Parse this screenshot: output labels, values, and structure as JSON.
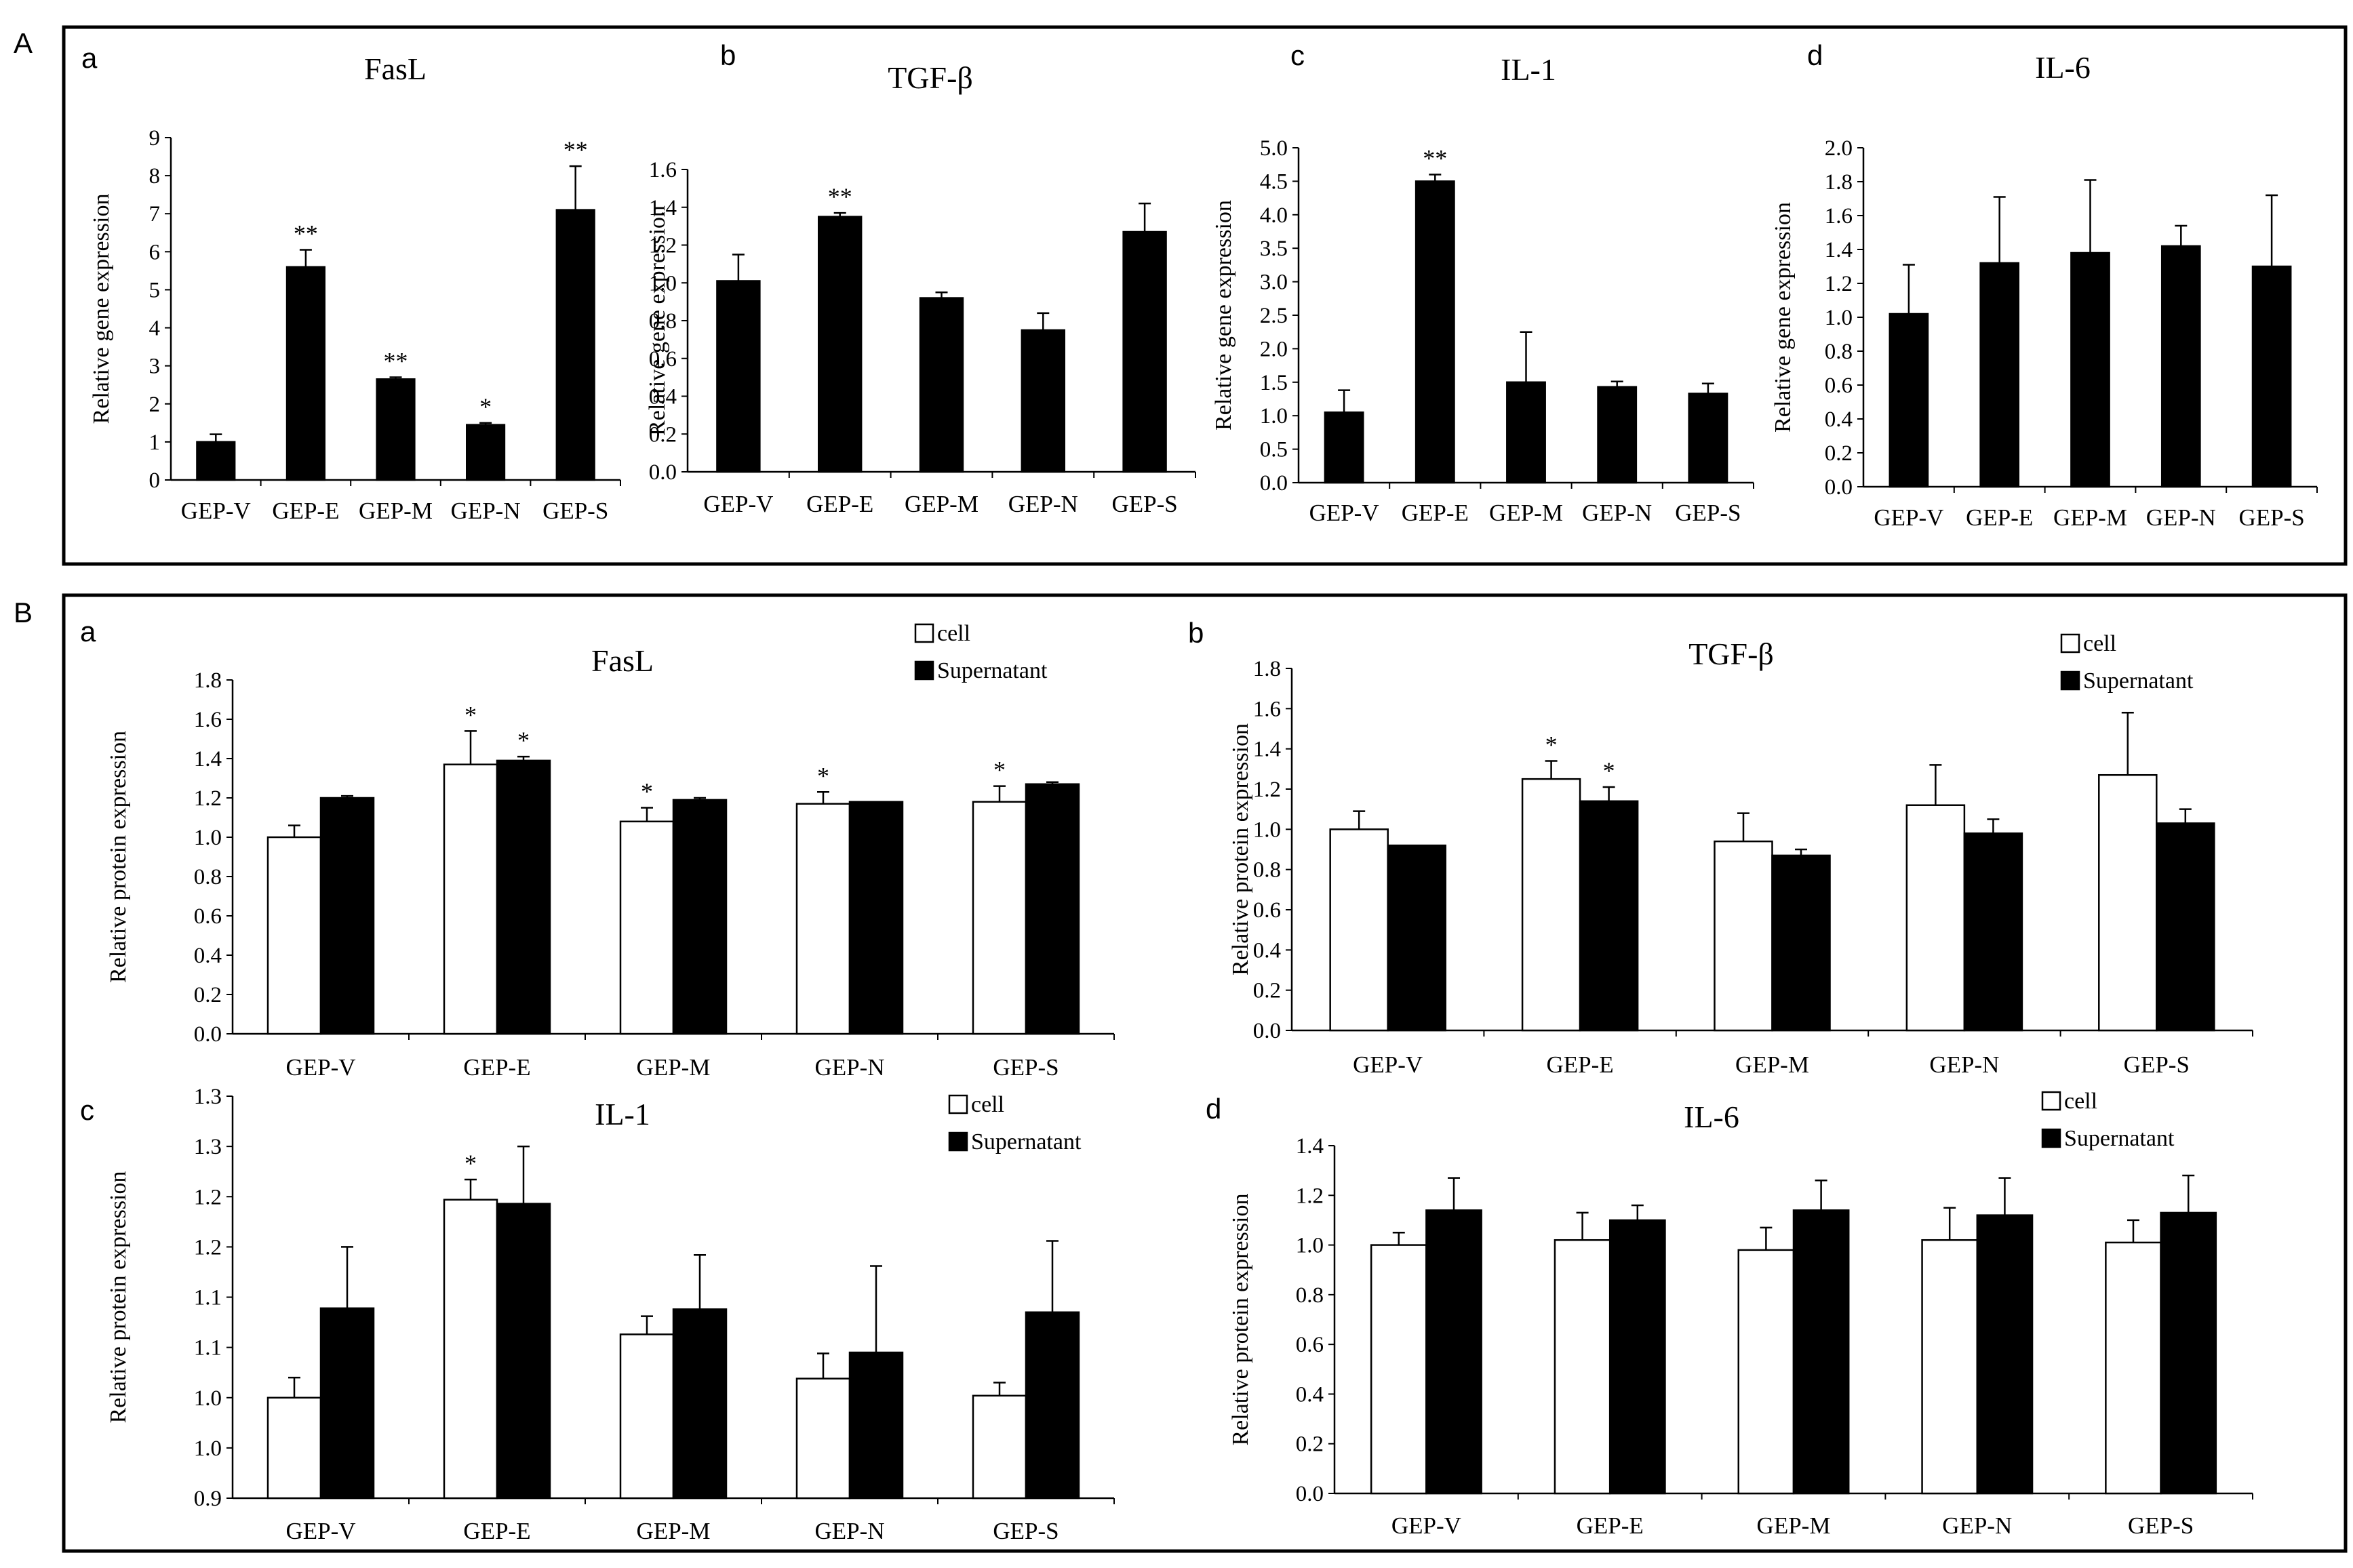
{
  "panels": [
    {
      "letter": "A"
    },
    {
      "letter": "B"
    }
  ],
  "chart_data": [
    {
      "panel": "A",
      "sublabel": "a",
      "type": "bar",
      "title": "FasL",
      "ylabel": "Relative gene expression",
      "xlabel": "",
      "ylim": [
        0,
        9
      ],
      "yticks": [
        0,
        1,
        2,
        3,
        4,
        5,
        6,
        7,
        8,
        9
      ],
      "tick_decimals": 0,
      "categories": [
        "GEP-V",
        "GEP-E",
        "GEP-M",
        "GEP-N",
        "GEP-S"
      ],
      "series": [
        {
          "color": "#000000",
          "values": [
            1.0,
            5.6,
            2.65,
            1.45,
            7.1
          ],
          "errors": [
            0.2,
            0.45,
            0.05,
            0.05,
            1.15
          ],
          "annotations": [
            "",
            "**",
            "**",
            "*",
            "**"
          ]
        }
      ]
    },
    {
      "panel": "A",
      "sublabel": "b",
      "type": "bar",
      "title": "TGF-β",
      "ylabel": "Relative gene expression",
      "xlabel": "",
      "ylim": [
        0,
        1.6
      ],
      "yticks": [
        0.0,
        0.2,
        0.4,
        0.6,
        0.8,
        1.0,
        1.2,
        1.4,
        1.6
      ],
      "tick_decimals": 1,
      "categories": [
        "GEP-V",
        "GEP-E",
        "GEP-M",
        "GEP-N",
        "GEP-S"
      ],
      "series": [
        {
          "color": "#000000",
          "values": [
            1.01,
            1.35,
            0.92,
            0.75,
            1.27
          ],
          "errors": [
            0.14,
            0.02,
            0.03,
            0.09,
            0.15
          ],
          "annotations": [
            "",
            "**",
            "",
            "",
            ""
          ]
        }
      ]
    },
    {
      "panel": "A",
      "sublabel": "c",
      "type": "bar",
      "title": "IL-1",
      "ylabel": "Relative gene expression",
      "xlabel": "",
      "ylim": [
        0,
        5
      ],
      "yticks": [
        0.0,
        0.5,
        1.0,
        1.5,
        2.0,
        2.5,
        3.0,
        3.5,
        4.0,
        4.5,
        5.0
      ],
      "tick_decimals": 1,
      "categories": [
        "GEP-V",
        "GEP-E",
        "GEP-M",
        "GEP-N",
        "GEP-S"
      ],
      "series": [
        {
          "color": "#000000",
          "values": [
            1.05,
            4.5,
            1.5,
            1.43,
            1.33
          ],
          "errors": [
            0.33,
            0.1,
            0.75,
            0.08,
            0.15
          ],
          "annotations": [
            "",
            "**",
            "",
            "",
            ""
          ]
        }
      ]
    },
    {
      "panel": "A",
      "sublabel": "d",
      "type": "bar",
      "title": "IL-6",
      "ylabel": "Relative gene expression",
      "xlabel": "",
      "ylim": [
        0,
        2
      ],
      "yticks": [
        0.0,
        0.2,
        0.4,
        0.6,
        0.8,
        1.0,
        1.2,
        1.4,
        1.6,
        1.8,
        2.0
      ],
      "tick_decimals": 1,
      "categories": [
        "GEP-V",
        "GEP-E",
        "GEP-M",
        "GEP-N",
        "GEP-S"
      ],
      "series": [
        {
          "color": "#000000",
          "values": [
            1.02,
            1.32,
            1.38,
            1.42,
            1.3
          ],
          "errors": [
            0.29,
            0.39,
            0.43,
            0.12,
            0.42
          ],
          "annotations": [
            "",
            "",
            "",
            "",
            ""
          ]
        }
      ]
    },
    {
      "panel": "B",
      "sublabel": "a",
      "type": "bar",
      "title": "FasL",
      "ylabel": "Relative protein expression",
      "xlabel": "",
      "ylim": [
        0,
        1.8
      ],
      "yticks": [
        0.0,
        0.2,
        0.4,
        0.6,
        0.8,
        1.0,
        1.2,
        1.4,
        1.6,
        1.8
      ],
      "tick_decimals": 1,
      "categories": [
        "GEP-V",
        "GEP-E",
        "GEP-M",
        "GEP-N",
        "GEP-S"
      ],
      "legend": [
        "cell",
        "Supernatant"
      ],
      "series": [
        {
          "name": "cell",
          "color": "#ffffff",
          "values": [
            1.0,
            1.37,
            1.08,
            1.17,
            1.18
          ],
          "errors": [
            0.06,
            0.17,
            0.07,
            0.06,
            0.08
          ],
          "annotations": [
            "",
            "*",
            "*",
            "*",
            "*"
          ]
        },
        {
          "name": "Supernatant",
          "color": "#000000",
          "values": [
            1.2,
            1.39,
            1.19,
            1.18,
            1.27
          ],
          "errors": [
            0.01,
            0.02,
            0.01,
            0.0,
            0.01
          ],
          "annotations": [
            "",
            "*",
            "",
            "",
            ""
          ]
        }
      ]
    },
    {
      "panel": "B",
      "sublabel": "b",
      "type": "bar",
      "title": "TGF-β",
      "ylabel": "Relative protein expression",
      "xlabel": "",
      "ylim": [
        0,
        1.8
      ],
      "yticks": [
        0.0,
        0.2,
        0.4,
        0.6,
        0.8,
        1.0,
        1.2,
        1.4,
        1.6,
        1.8
      ],
      "tick_decimals": 1,
      "categories": [
        "GEP-V",
        "GEP-E",
        "GEP-M",
        "GEP-N",
        "GEP-S"
      ],
      "legend": [
        "cell",
        "Supernatant"
      ],
      "series": [
        {
          "name": "cell",
          "color": "#ffffff",
          "values": [
            1.0,
            1.25,
            0.94,
            1.12,
            1.27
          ],
          "errors": [
            0.09,
            0.09,
            0.14,
            0.2,
            0.31
          ],
          "annotations": [
            "",
            "*",
            "",
            "",
            ""
          ]
        },
        {
          "name": "Supernatant",
          "color": "#000000",
          "values": [
            0.92,
            1.14,
            0.87,
            0.98,
            1.03
          ],
          "errors": [
            0.0,
            0.07,
            0.03,
            0.07,
            0.07
          ],
          "annotations": [
            "",
            "*",
            "",
            "",
            ""
          ]
        }
      ]
    },
    {
      "panel": "B",
      "sublabel": "c",
      "type": "bar",
      "title": "IL-1",
      "ylabel": "Relative protein expression",
      "xlabel": "",
      "ylim": [
        0.9,
        1.3
      ],
      "yticks": [
        0.9,
        0.95,
        1.0,
        1.05,
        1.1,
        1.15,
        1.2,
        1.25,
        1.3
      ],
      "ytick_labels": [
        "0.9",
        "1.0",
        "1.0",
        "1.1",
        "1.1",
        "1.2",
        "1.2",
        "1.3",
        "1.3"
      ],
      "categories": [
        "GEP-V",
        "GEP-E",
        "GEP-M",
        "GEP-N",
        "GEP-S"
      ],
      "legend": [
        "cell",
        "Supernatant"
      ],
      "series": [
        {
          "name": "cell",
          "color": "#ffffff",
          "values": [
            1.0,
            1.197,
            1.063,
            1.019,
            1.002
          ],
          "errors": [
            0.02,
            0.02,
            0.018,
            0.025,
            0.013
          ],
          "annotations": [
            "",
            "*",
            "",
            "",
            ""
          ]
        },
        {
          "name": "Supernatant",
          "color": "#000000",
          "values": [
            1.089,
            1.193,
            1.088,
            1.045,
            1.085
          ],
          "errors": [
            0.061,
            0.057,
            0.054,
            0.086,
            0.071
          ],
          "annotations": [
            "",
            "",
            "",
            "",
            ""
          ]
        }
      ]
    },
    {
      "panel": "B",
      "sublabel": "d",
      "type": "bar",
      "title": "IL-6",
      "ylabel": "Relative protein expression",
      "xlabel": "",
      "ylim": [
        0,
        1.4
      ],
      "yticks": [
        0.0,
        0.2,
        0.4,
        0.6,
        0.8,
        1.0,
        1.2,
        1.4
      ],
      "tick_decimals": 1,
      "categories": [
        "GEP-V",
        "GEP-E",
        "GEP-M",
        "GEP-N",
        "GEP-S"
      ],
      "legend": [
        "cell",
        "Supernatant"
      ],
      "series": [
        {
          "name": "cell",
          "color": "#ffffff",
          "values": [
            1.0,
            1.02,
            0.98,
            1.02,
            1.01
          ],
          "errors": [
            0.05,
            0.11,
            0.09,
            0.13,
            0.09
          ],
          "annotations": [
            "",
            "",
            "",
            "",
            ""
          ]
        },
        {
          "name": "Supernatant",
          "color": "#000000",
          "values": [
            1.14,
            1.1,
            1.14,
            1.12,
            1.13
          ],
          "errors": [
            0.13,
            0.06,
            0.12,
            0.15,
            0.15
          ],
          "annotations": [
            "",
            "",
            "",
            "",
            ""
          ]
        }
      ]
    }
  ]
}
